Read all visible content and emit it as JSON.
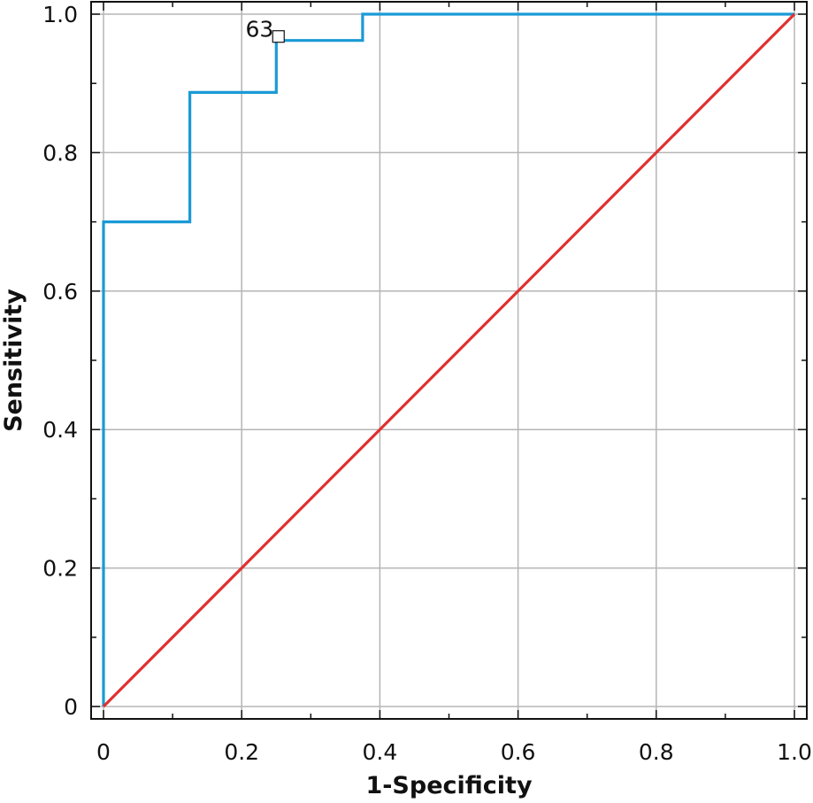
{
  "chart_data": {
    "type": "line",
    "title": "",
    "xlabel": "1-Specificity",
    "ylabel": "Sensitivity",
    "xlim": [
      0,
      1
    ],
    "ylim": [
      0,
      1
    ],
    "grid": true,
    "x_ticks": [
      0,
      0.2,
      0.4,
      0.6,
      0.8,
      1.0
    ],
    "x_tick_labels": [
      "0",
      "0.2",
      "0.4",
      "0.6",
      "0.8",
      "1.0"
    ],
    "y_ticks": [
      0,
      0.2,
      0.4,
      0.6,
      0.8,
      1.0
    ],
    "y_tick_labels": [
      "0",
      "0.2",
      "0.4",
      "0.6",
      "0.8",
      "1.0"
    ],
    "series": [
      {
        "color": "#1a9ad6",
        "step": true,
        "x": [
          0,
          0,
          0.125,
          0.125,
          0.25,
          0.25,
          0.375,
          0.375,
          1.0
        ],
        "y": [
          0,
          0.7,
          0.7,
          0.887,
          0.887,
          0.962,
          0.962,
          1.0,
          1.0
        ]
      },
      {
        "color": "#e03030",
        "x": [
          0,
          1
        ],
        "y": [
          0,
          1
        ]
      }
    ],
    "annotations": [
      {
        "text": "63",
        "x": 0.25,
        "y": 0.962,
        "marker": "square"
      }
    ]
  }
}
